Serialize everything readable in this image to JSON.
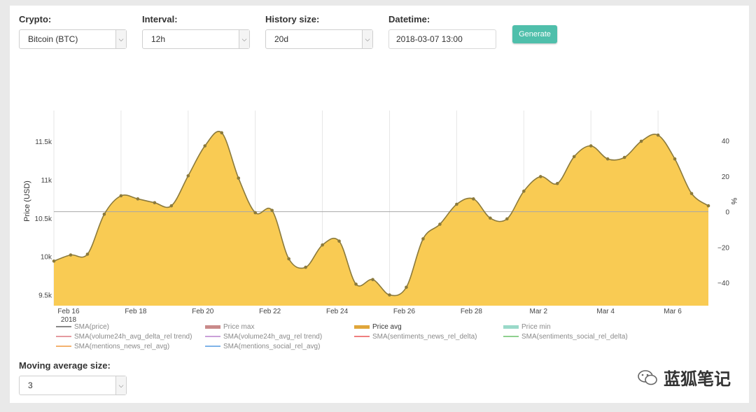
{
  "controls": {
    "crypto": {
      "label": "Crypto:",
      "value": "Bitcoin (BTC)"
    },
    "interval": {
      "label": "Interval:",
      "value": "12h"
    },
    "history": {
      "label": "History size:",
      "value": "20d"
    },
    "datetime": {
      "label": "Datetime:",
      "value": "2018-03-07 13:00"
    },
    "generate_label": "Generate"
  },
  "moving_average": {
    "label": "Moving average size:",
    "value": "3"
  },
  "watermark": "蓝狐笔记",
  "colors": {
    "area_fill": "#f9cb53",
    "area_line": "#8b7a3c",
    "button": "#4fbfab"
  },
  "chart_data": {
    "type": "area",
    "ylabel": "Price (USD)",
    "y2label": "%",
    "ylim": [
      9360,
      11900
    ],
    "y2lim": [
      -53,
      57
    ],
    "y_ticks": [
      "9.5k",
      "10k",
      "10.5k",
      "11k",
      "11.5k"
    ],
    "y_tick_values": [
      9500,
      10000,
      10500,
      11000,
      11500
    ],
    "y2_ticks": [
      "−40",
      "−20",
      "0",
      "20",
      "40"
    ],
    "y2_tick_values": [
      -40,
      -20,
      0,
      20,
      40
    ],
    "x_ticks": [
      "Feb 16",
      "Feb 18",
      "Feb 20",
      "Feb 22",
      "Feb 24",
      "Feb 26",
      "Feb 28",
      "Mar 2",
      "Mar 4",
      "Mar 6"
    ],
    "x_tick_sub": "2018",
    "grid": true,
    "reference_line_y2": 0,
    "series": [
      {
        "name": "Price avg",
        "values": [
          9940,
          10020,
          10030,
          10550,
          10790,
          10750,
          10700,
          10660,
          11050,
          11440,
          11610,
          11020,
          10570,
          10600,
          9970,
          9860,
          10150,
          10200,
          9640,
          9700,
          9500,
          9600,
          10230,
          10420,
          10680,
          10750,
          10500,
          10490,
          10850,
          11040,
          10950,
          11300,
          11440,
          11270,
          11290,
          11500,
          11580,
          11270,
          10820,
          10660
        ]
      }
    ],
    "legend": [
      {
        "name": "SMA(price)",
        "color": "#888888",
        "active": false
      },
      {
        "name": "Price max",
        "color": "#c98a8a",
        "active": false
      },
      {
        "name": "Price avg",
        "color": "#e0a63a",
        "active": true
      },
      {
        "name": "Price min",
        "color": "#9ad9c9",
        "active": false
      },
      {
        "name": "SMA(volume24h_avg_delta_rel trend)",
        "color": "#e59aa0",
        "active": false
      },
      {
        "name": "SMA(volume24h_avg_rel trend)",
        "color": "#caa0d8",
        "active": false
      },
      {
        "name": "SMA(sentiments_news_rel_delta)",
        "color": "#ef7f7f",
        "active": false
      },
      {
        "name": "SMA(sentiments_social_rel_delta)",
        "color": "#8fd08f",
        "active": false
      },
      {
        "name": "SMA(mentions_news_rel_avg)",
        "color": "#f4b26f",
        "active": false
      },
      {
        "name": "SMA(mentions_social_rel_avg)",
        "color": "#7fb3e8",
        "active": false
      }
    ]
  }
}
